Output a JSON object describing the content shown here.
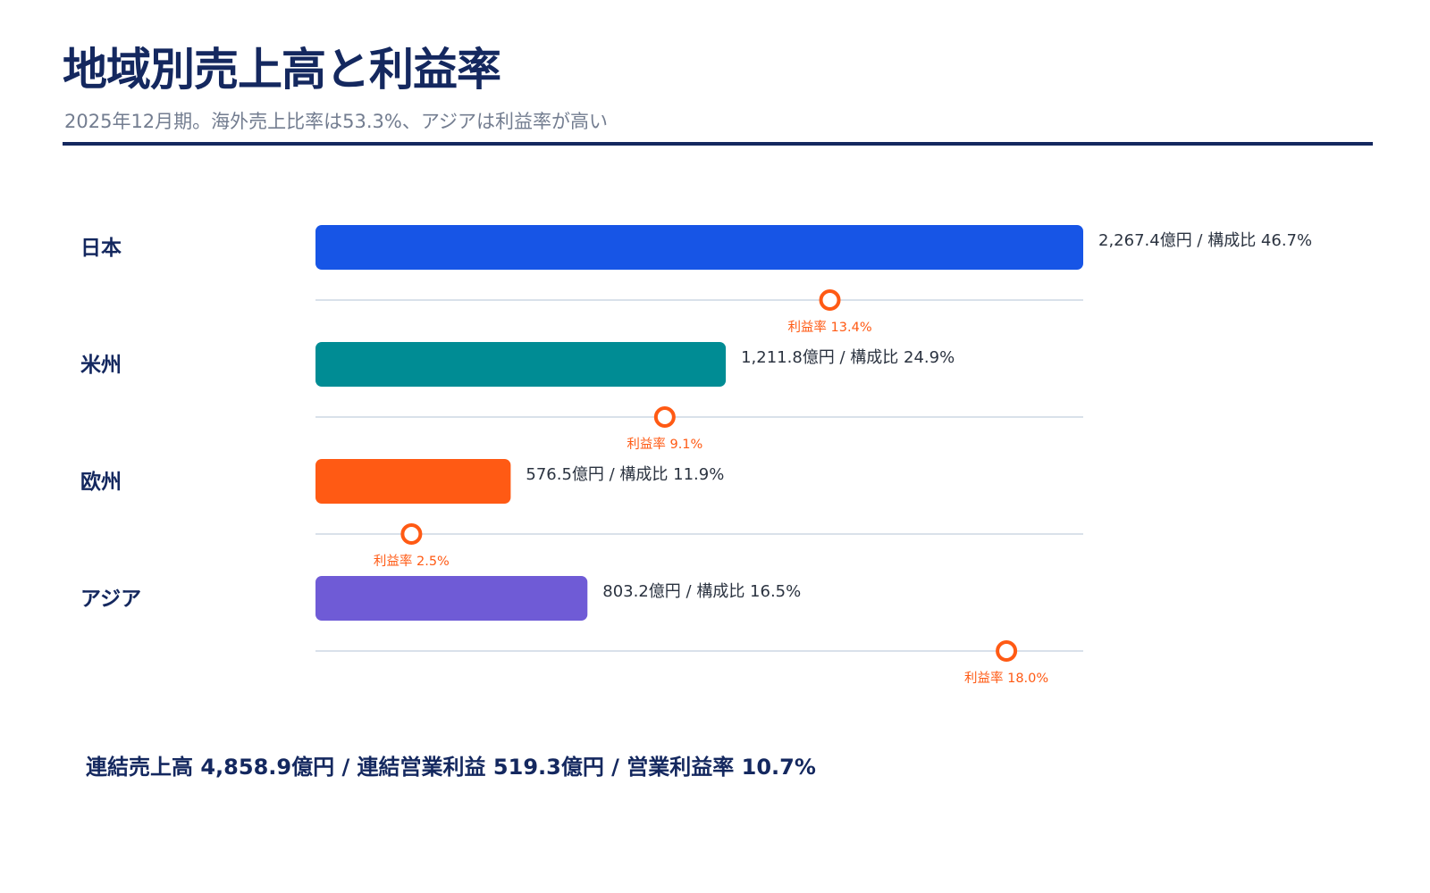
{
  "header": {
    "title": "地域別売上高と利益率",
    "subtitle": "2025年12月期。海外売上比率は53.3%、アジアは利益率が高い"
  },
  "chart_data": {
    "type": "bar",
    "orientation": "horizontal",
    "categories": [
      "日本",
      "米州",
      "欧州",
      "アジア"
    ],
    "series": [
      {
        "values": [
          2267.4,
          1211.8,
          576.5,
          803.2
        ],
        "unit": "億円",
        "colors": [
          "#1755e6",
          "#008c94",
          "#ff5a14",
          "#6f5bd6"
        ]
      },
      {
        "values": [
          46.7,
          24.9,
          11.9,
          16.5
        ],
        "unit": "%"
      },
      {
        "values": [
          13.4,
          9.1,
          2.5,
          18.0
        ],
        "unit": "%",
        "color": "#ff5a14"
      }
    ],
    "value_labels": [
      "2,267.4億円 / 構成比 46.7%",
      "1,211.8億円 / 構成比 24.9%",
      "576.5億円 / 構成比 11.9%",
      "803.2億円 / 構成比 16.5%"
    ],
    "margin_labels": [
      "利益率 13.4%",
      "利益率 9.1%",
      "利益率 2.5%",
      "利益率 18.0%"
    ],
    "xlim": [
      0,
      2267.4
    ],
    "margin_xlim": [
      0,
      20
    ],
    "grid": false,
    "legend": "none"
  },
  "footer": {
    "text": "連結売上高 4,858.9億円 / 連結営業利益 519.3億円 / 営業利益率 10.7%"
  }
}
